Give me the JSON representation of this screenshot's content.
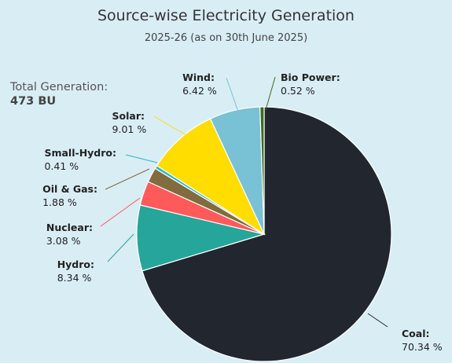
{
  "header": {
    "title": "Source-wise Electricity Generation",
    "subtitle": "2025-26 (as on 30th June 2025)"
  },
  "total": {
    "label": "Total Generation:",
    "value": "473 BU"
  },
  "chart_data": {
    "type": "pie",
    "title": "Source-wise Electricity Generation",
    "subtitle": "2025-26 (as on 30th June 2025)",
    "unit": "%",
    "slices": [
      {
        "name": "Coal",
        "value": 70.34,
        "display": "70.34 %",
        "color": "#22262e"
      },
      {
        "name": "Hydro",
        "value": 8.34,
        "display": "8.34 %",
        "color": "#26a59a"
      },
      {
        "name": "Nuclear",
        "value": 3.08,
        "display": "3.08 %",
        "color": "#ff5a5a"
      },
      {
        "name": "Oil & Gas",
        "value": 1.88,
        "display": "1.88 %",
        "color": "#826b3e"
      },
      {
        "name": "Small-Hydro",
        "value": 0.41,
        "display": "0.41 %",
        "color": "#2bb8c4"
      },
      {
        "name": "Solar",
        "value": 9.01,
        "display": "9.01 %",
        "color": "#ffdd00"
      },
      {
        "name": "Wind",
        "value": 6.42,
        "display": "6.42 %",
        "color": "#79c1d4"
      },
      {
        "name": "Bio Power",
        "value": 0.52,
        "display": "0.52 %",
        "color": "#3d6b1f"
      }
    ],
    "start_angle_deg": 0,
    "direction": "clockwise",
    "legend": "none"
  }
}
